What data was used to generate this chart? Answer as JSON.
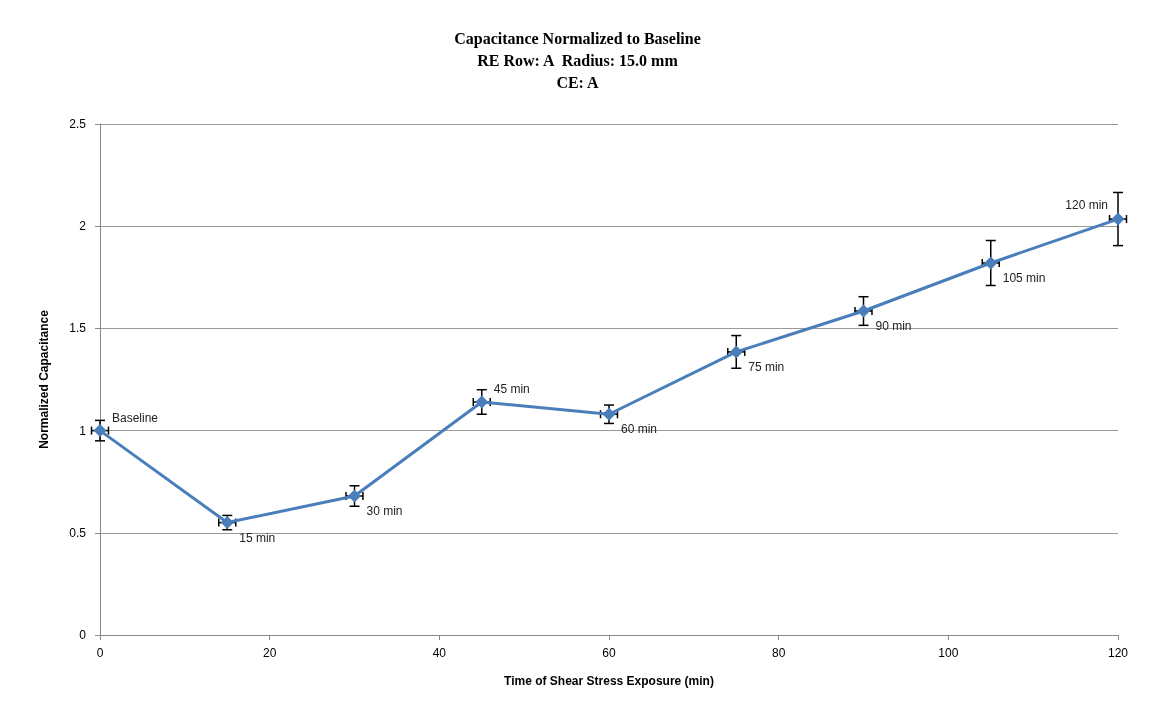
{
  "chart_data": {
    "type": "line",
    "title": "Capacitance Normalized to Baseline\nRE Row: A  Radius: 15.0 mm\nCE: A",
    "xlabel": "Time of Shear Stress Exposure (min)",
    "ylabel": "Normalized Capacitance",
    "x": [
      0,
      15,
      30,
      45,
      60,
      75,
      90,
      105,
      120
    ],
    "series": [
      {
        "color": "#4a7ebb",
        "values": [
          1.0,
          0.55,
          0.68,
          1.14,
          1.08,
          1.385,
          1.585,
          1.82,
          2.035
        ],
        "errors": [
          0.05,
          0.035,
          0.05,
          0.06,
          0.045,
          0.08,
          0.07,
          0.11,
          0.13
        ],
        "xerrors": [
          1,
          1,
          1,
          1,
          1,
          1,
          1,
          1,
          1
        ]
      }
    ],
    "annotations": [
      {
        "text": "Baseline",
        "x": 0,
        "y": 1.0
      },
      {
        "text": "15 min",
        "x": 15,
        "y": 0.55
      },
      {
        "text": "30 min",
        "x": 30,
        "y": 0.68
      },
      {
        "text": "45 min",
        "x": 45,
        "y": 1.14
      },
      {
        "text": "60 min",
        "x": 60,
        "y": 1.08
      },
      {
        "text": "75 min",
        "x": 75,
        "y": 1.385
      },
      {
        "text": "90 min",
        "x": 90,
        "y": 1.585
      },
      {
        "text": "105 min",
        "x": 105,
        "y": 1.82
      },
      {
        "text": "120 min",
        "x": 120,
        "y": 2.035
      }
    ],
    "xlim": [
      0,
      120
    ],
    "xticks": [
      0,
      20,
      40,
      60,
      80,
      100,
      120
    ],
    "ylim": [
      0,
      2.5
    ],
    "yticks": [
      0,
      0.5,
      1,
      1.5,
      2,
      2.5
    ],
    "grid": "y",
    "marker": "diamond",
    "line_style": "solid"
  }
}
